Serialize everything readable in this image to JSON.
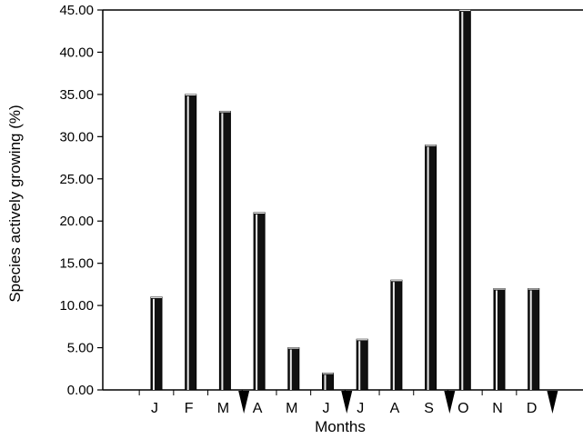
{
  "chart_data": {
    "type": "bar",
    "categories": [
      "J",
      "F",
      "M",
      "A",
      "M",
      "J",
      "J",
      "A",
      "S",
      "O",
      "N",
      "D"
    ],
    "values": [
      11,
      35,
      33,
      21,
      5,
      2,
      6,
      13,
      29,
      45,
      12,
      12
    ],
    "xlabel": "Months",
    "ylabel": "Species actively growing (%)",
    "ylim": [
      0,
      45
    ],
    "yticks": [
      "0.00",
      "5.00",
      "10.00",
      "15.00",
      "20.00",
      "25.00",
      "30.00",
      "35.00",
      "40.00",
      "45.00"
    ],
    "grid": false,
    "markers": [
      {
        "after_category_index": 2,
        "shape": "triangle-down"
      },
      {
        "after_category_index": 5,
        "shape": "triangle-down"
      },
      {
        "after_category_index": 8,
        "shape": "triangle-down"
      },
      {
        "after_category_index": 11,
        "shape": "triangle-down"
      }
    ]
  }
}
